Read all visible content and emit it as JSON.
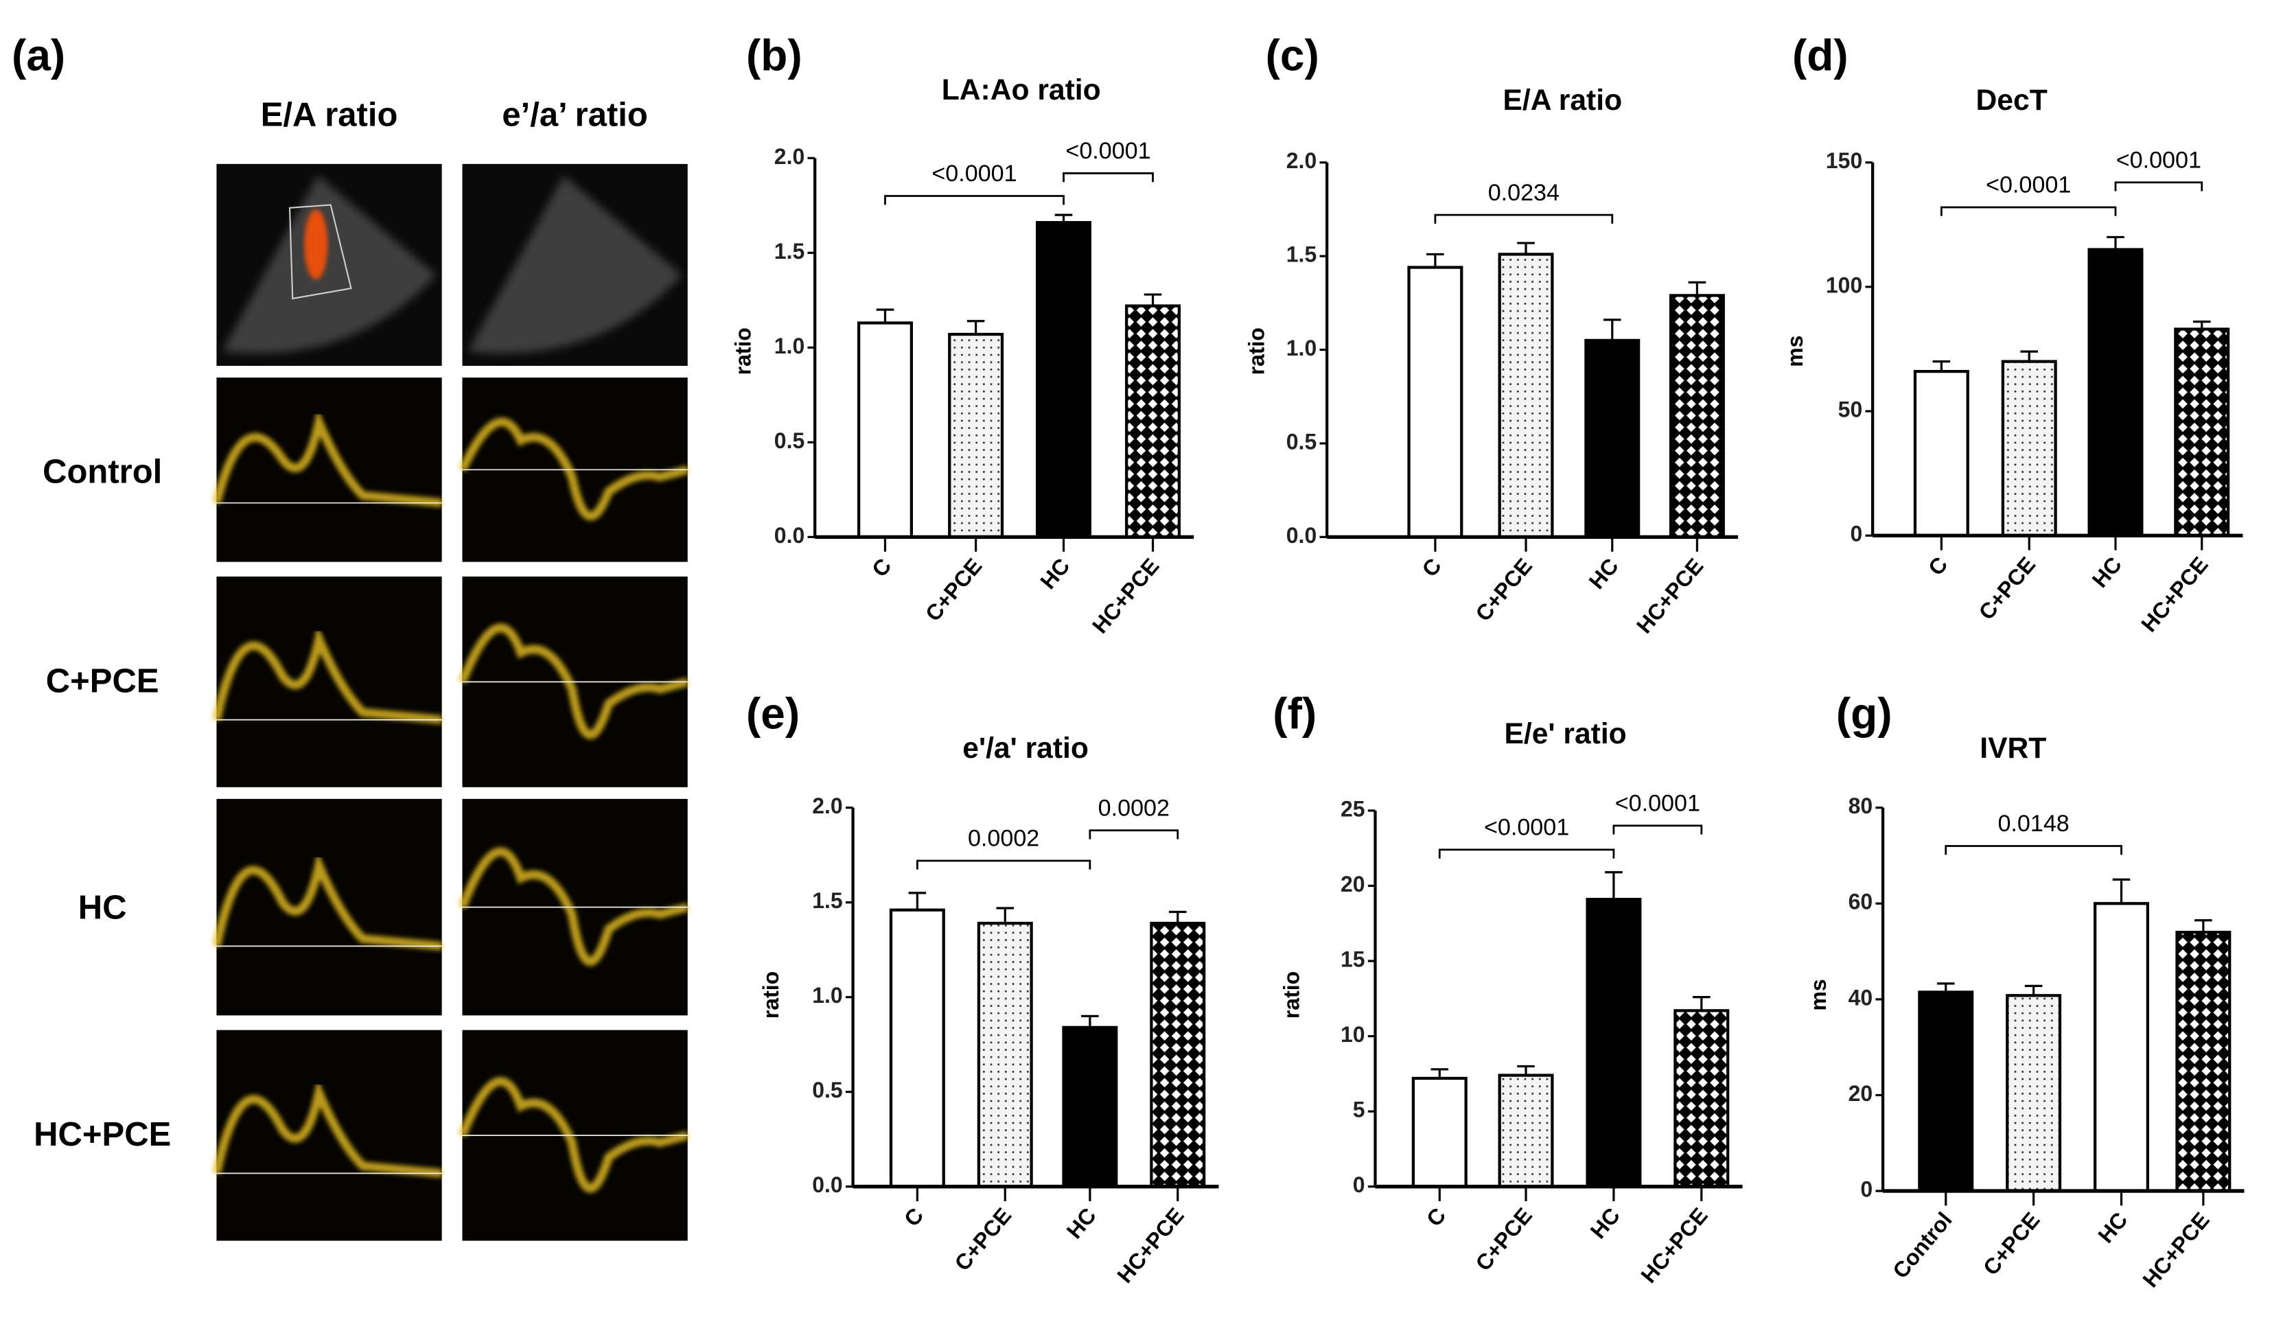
{
  "panel_a": {
    "label": "(a)",
    "col_titles": [
      "E/A ratio",
      "e’/a’ ratio"
    ],
    "row_labels": [
      "Control",
      "C+PCE",
      "HC",
      "HC+PCE"
    ]
  },
  "colors": {
    "bar_line": "#000000",
    "doppler": "#e8c020",
    "flow": "#e85010"
  },
  "chart_data": [
    {
      "panel": "(b)",
      "type": "bar",
      "title": "LA:Ao ratio",
      "ylabel": "ratio",
      "categories": [
        "C",
        "C+PCE",
        "HC",
        "HC+PCE"
      ],
      "values": [
        1.13,
        1.07,
        1.66,
        1.22
      ],
      "errors": [
        0.07,
        0.07,
        0.04,
        0.06
      ],
      "fills": [
        "white",
        "dots",
        "black",
        "crosshatch"
      ],
      "ylim": [
        0,
        2
      ],
      "yticks": [
        "0.0",
        "0.5",
        "1.0",
        "1.5",
        "2.0"
      ],
      "comparisons": [
        {
          "from": 0,
          "to": 2,
          "y": 1.8,
          "label": "<0.0001"
        },
        {
          "from": 2,
          "to": 3,
          "y": 1.92,
          "label": "<0.0001"
        }
      ]
    },
    {
      "panel": "(c)",
      "type": "bar",
      "title": "E/A ratio",
      "ylabel": "ratio",
      "categories": [
        "C",
        "C+PCE",
        "HC",
        "HC+PCE"
      ],
      "values": [
        1.44,
        1.51,
        1.05,
        1.29
      ],
      "errors": [
        0.07,
        0.06,
        0.11,
        0.07
      ],
      "fills": [
        "white",
        "dots",
        "black",
        "crosshatch"
      ],
      "ylim": [
        0,
        2
      ],
      "yticks": [
        "0.0",
        "0.5",
        "1.0",
        "1.5",
        "2.0"
      ],
      "comparisons": [
        {
          "from": 0,
          "to": 2,
          "y": 1.72,
          "label": "0.0234"
        }
      ]
    },
    {
      "panel": "(d)",
      "type": "bar",
      "title": "DecT",
      "ylabel": "ms",
      "categories": [
        "C",
        "C+PCE",
        "HC",
        "HC+PCE"
      ],
      "values": [
        66,
        70,
        115,
        83
      ],
      "errors": [
        4,
        4,
        5,
        3
      ],
      "fills": [
        "white",
        "dots",
        "black",
        "crosshatch"
      ],
      "ylim": [
        0,
        150
      ],
      "yticks": [
        "0",
        "50",
        "100",
        "150"
      ],
      "comparisons": [
        {
          "from": 0,
          "to": 2,
          "y": 132,
          "label": "<0.0001"
        },
        {
          "from": 2,
          "to": 3,
          "y": 142,
          "label": "<0.0001"
        }
      ]
    },
    {
      "panel": "(e)",
      "type": "bar",
      "title": "e'/a' ratio",
      "ylabel": "ratio",
      "categories": [
        "C",
        "C+PCE",
        "HC",
        "HC+PCE"
      ],
      "values": [
        1.46,
        1.39,
        0.84,
        1.39
      ],
      "errors": [
        0.09,
        0.08,
        0.06,
        0.06
      ],
      "fills": [
        "white",
        "dots",
        "black",
        "crosshatch"
      ],
      "ylim": [
        0,
        2
      ],
      "yticks": [
        "0.0",
        "0.5",
        "1.0",
        "1.5",
        "2.0"
      ],
      "comparisons": [
        {
          "from": 0,
          "to": 2,
          "y": 1.72,
          "label": "0.0002"
        },
        {
          "from": 2,
          "to": 3,
          "y": 1.88,
          "label": "0.0002"
        }
      ]
    },
    {
      "panel": "(f)",
      "type": "bar",
      "title": "E/e' ratio",
      "ylabel": "ratio",
      "categories": [
        "C",
        "C+PCE",
        "HC",
        "HC+PCE"
      ],
      "values": [
        7.2,
        7.4,
        19.1,
        11.7
      ],
      "errors": [
        0.6,
        0.6,
        1.8,
        0.9
      ],
      "fills": [
        "white",
        "dots",
        "black",
        "crosshatch"
      ],
      "ylim": [
        0,
        25
      ],
      "yticks": [
        "0",
        "5",
        "10",
        "15",
        "20",
        "25"
      ],
      "comparisons": [
        {
          "from": 0,
          "to": 2,
          "y": 22.4,
          "label": "<0.0001"
        },
        {
          "from": 2,
          "to": 3,
          "y": 24.0,
          "label": "<0.0001"
        }
      ]
    },
    {
      "panel": "(g)",
      "type": "bar",
      "title": "IVRT",
      "ylabel": "ms",
      "categories": [
        "Control",
        "C+PCE",
        "HC",
        "HC+PCE"
      ],
      "values": [
        41.5,
        40.8,
        60,
        54
      ],
      "errors": [
        1.8,
        2,
        5,
        2.5
      ],
      "fills": [
        "black",
        "dots",
        "white",
        "crosshatch"
      ],
      "ylim": [
        0,
        80
      ],
      "yticks": [
        "0",
        "20",
        "40",
        "60",
        "80"
      ],
      "comparisons": [
        {
          "from": 0,
          "to": 2,
          "y": 72,
          "label": "0.0148"
        }
      ]
    }
  ]
}
